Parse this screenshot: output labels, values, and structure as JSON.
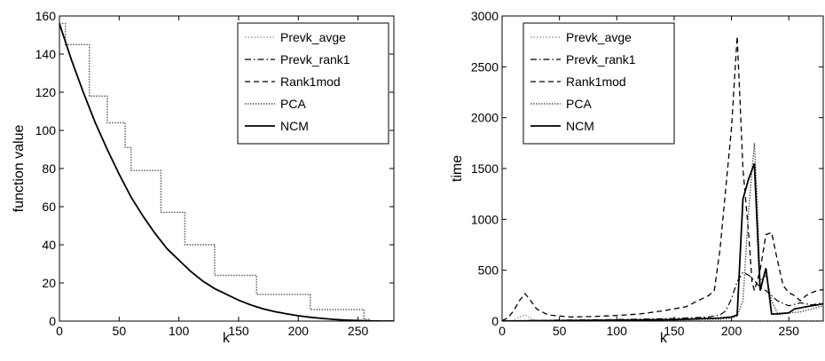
{
  "chart_data": [
    {
      "type": "line",
      "xlabel": "k",
      "ylabel": "function value",
      "xlim": [
        0,
        280
      ],
      "ylim": [
        0,
        160
      ],
      "xticks": [
        "0",
        "50",
        "100",
        "150",
        "200",
        "250"
      ],
      "yticks": [
        "0",
        "20",
        "40",
        "60",
        "80",
        "100",
        "120",
        "140",
        "160"
      ],
      "grid": false,
      "legend": "top-right",
      "series": [
        {
          "name": "Prevk_avge",
          "style": "dotted-light",
          "x": [
            0,
            10,
            20,
            30,
            40,
            50,
            60,
            70,
            80,
            90,
            100,
            110,
            120,
            130,
            140,
            150,
            160,
            170,
            180,
            190,
            200,
            210,
            220,
            230,
            240,
            250,
            260,
            270,
            280
          ],
          "y": [
            156,
            137,
            120,
            104,
            90,
            77,
            65,
            55,
            46,
            38,
            32,
            26,
            21,
            17,
            14,
            11,
            8.5,
            6.5,
            5,
            3.8,
            2.8,
            2,
            1.4,
            0.9,
            0.5,
            0.3,
            0.1,
            0,
            0
          ]
        },
        {
          "name": "Prevk_rank1",
          "style": "dashdot",
          "x": [
            0,
            10,
            20,
            30,
            40,
            50,
            60,
            70,
            80,
            90,
            100,
            110,
            120,
            130,
            140,
            150,
            160,
            170,
            180,
            190,
            200,
            210,
            220,
            230,
            240,
            250,
            260,
            270,
            280
          ],
          "y": [
            156,
            137,
            120,
            104,
            90,
            77,
            65,
            55,
            46,
            38,
            32,
            26,
            21,
            17,
            14,
            11,
            8.5,
            6.5,
            5,
            3.8,
            2.8,
            2,
            1.4,
            0.9,
            0.5,
            0.3,
            0.1,
            0,
            0
          ]
        },
        {
          "name": "Rank1mod",
          "style": "dashed",
          "x": [
            0,
            10,
            20,
            30,
            40,
            50,
            60,
            70,
            80,
            90,
            100,
            110,
            120,
            130,
            140,
            150,
            160,
            170,
            180,
            190,
            200,
            210,
            220,
            230,
            240,
            250,
            260,
            270,
            280
          ],
          "y": [
            156,
            137,
            120,
            104,
            90,
            77,
            65,
            55,
            46,
            38,
            32,
            26,
            21,
            17,
            14,
            11,
            8.5,
            6.5,
            5,
            3.8,
            2.8,
            2,
            1.4,
            0.9,
            0.5,
            0.3,
            0.1,
            0,
            0
          ]
        },
        {
          "name": "PCA",
          "style": "dotted",
          "x": [
            0,
            5,
            5,
            25,
            25,
            40,
            40,
            55,
            55,
            60,
            60,
            80,
            80,
            85,
            85,
            100,
            100,
            105,
            105,
            125,
            125,
            130,
            130,
            160,
            160,
            165,
            165,
            205,
            205,
            210,
            210,
            255,
            255,
            260,
            260,
            280
          ],
          "y": [
            156,
            156,
            145,
            145,
            118,
            118,
            104,
            104,
            91,
            91,
            79,
            79,
            79,
            79,
            57,
            57,
            57,
            57,
            40,
            40,
            40,
            40,
            24,
            24,
            24,
            24,
            14,
            14,
            14,
            14,
            6,
            6,
            1,
            1,
            0,
            0
          ]
        },
        {
          "name": "NCM",
          "style": "solid",
          "x": [
            0,
            10,
            20,
            30,
            40,
            50,
            60,
            70,
            80,
            90,
            100,
            110,
            120,
            130,
            140,
            150,
            160,
            170,
            180,
            190,
            200,
            210,
            220,
            230,
            240,
            250,
            260,
            270,
            280
          ],
          "y": [
            156,
            137,
            120,
            104,
            90,
            77,
            65,
            55,
            46,
            38,
            32,
            26,
            21,
            17,
            14,
            11,
            8.5,
            6.5,
            5,
            3.8,
            2.8,
            2,
            1.4,
            0.9,
            0.5,
            0.3,
            0.1,
            0,
            0
          ]
        }
      ]
    },
    {
      "type": "line",
      "xlabel": "k",
      "ylabel": "time",
      "xlim": [
        0,
        280
      ],
      "ylim": [
        0,
        3000
      ],
      "xticks": [
        "0",
        "50",
        "100",
        "150",
        "200",
        "250"
      ],
      "yticks": [
        "0",
        "500",
        "1000",
        "1500",
        "2000",
        "2500",
        "3000"
      ],
      "grid": false,
      "legend": "top-left",
      "series": [
        {
          "name": "Prevk_avge",
          "style": "dotted-light",
          "x": [
            0,
            10,
            15,
            20,
            25,
            30,
            40,
            60,
            100,
            150,
            200,
            210,
            220,
            230,
            240,
            250,
            260,
            270,
            280
          ],
          "y": [
            0,
            5,
            40,
            60,
            30,
            5,
            3,
            3,
            3,
            3,
            3,
            3,
            3,
            3,
            3,
            3,
            3,
            3,
            3
          ]
        },
        {
          "name": "Prevk_rank1",
          "style": "dashdot",
          "x": [
            0,
            20,
            50,
            100,
            150,
            180,
            190,
            195,
            200,
            205,
            210,
            215,
            220,
            225,
            230,
            240,
            250,
            260,
            270,
            280
          ],
          "y": [
            0,
            5,
            10,
            15,
            25,
            40,
            60,
            100,
            220,
            390,
            480,
            450,
            400,
            330,
            300,
            200,
            150,
            180,
            160,
            180
          ]
        },
        {
          "name": "Rank1mod",
          "style": "dashed",
          "x": [
            0,
            5,
            10,
            15,
            20,
            25,
            30,
            40,
            60,
            80,
            100,
            120,
            140,
            160,
            180,
            185,
            190,
            195,
            200,
            205,
            210,
            215,
            218,
            220,
            225,
            230,
            235,
            240,
            245,
            250,
            255,
            260,
            265,
            270,
            275,
            280
          ],
          "y": [
            5,
            30,
            100,
            200,
            270,
            200,
            120,
            60,
            40,
            45,
            55,
            70,
            100,
            140,
            250,
            300,
            700,
            1300,
            1900,
            2800,
            1500,
            850,
            380,
            300,
            500,
            850,
            870,
            600,
            350,
            280,
            250,
            200,
            250,
            280,
            300,
            310
          ]
        },
        {
          "name": "PCA",
          "style": "dotted",
          "x": [
            0,
            50,
            100,
            150,
            190,
            200,
            205,
            210,
            215,
            220,
            222,
            225,
            230,
            235,
            240,
            250,
            260,
            270,
            280
          ],
          "y": [
            0,
            5,
            5,
            10,
            20,
            30,
            50,
            200,
            1100,
            1750,
            1300,
            400,
            450,
            200,
            80,
            80,
            90,
            120,
            150
          ]
        },
        {
          "name": "NCM",
          "style": "solid",
          "x": [
            0,
            50,
            100,
            150,
            190,
            200,
            205,
            210,
            215,
            220,
            225,
            230,
            235,
            240,
            250,
            255,
            260,
            265,
            270,
            275,
            280
          ],
          "y": [
            0,
            5,
            10,
            15,
            30,
            40,
            60,
            1200,
            1400,
            1550,
            300,
            520,
            70,
            70,
            80,
            120,
            130,
            140,
            150,
            160,
            170
          ]
        }
      ]
    }
  ]
}
